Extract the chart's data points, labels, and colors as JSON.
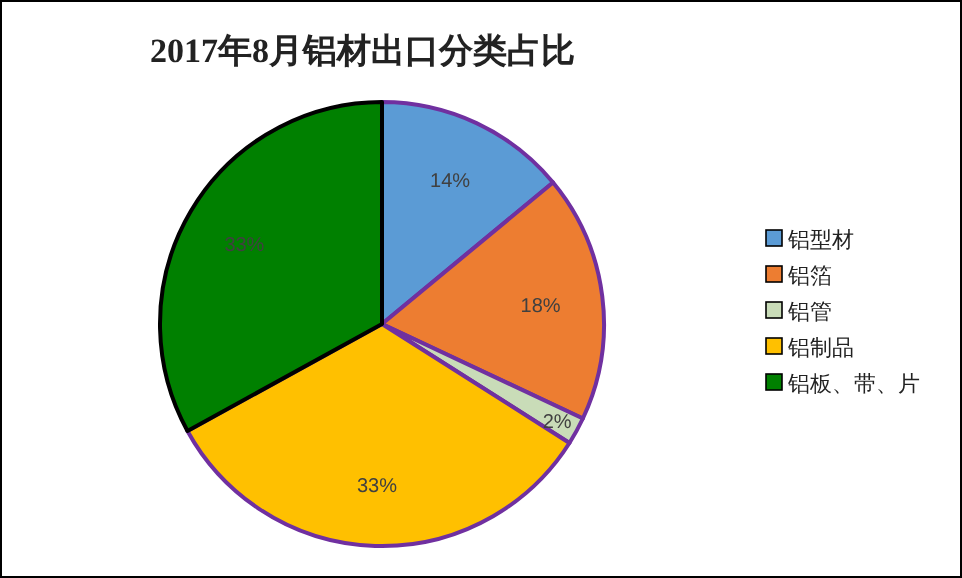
{
  "chart_data": {
    "type": "pie",
    "title": "2017年8月铝材出口分类占比",
    "categories": [
      "铝型材",
      "铝箔",
      "铝管",
      "铝制品",
      "铝板、带、片"
    ],
    "values": [
      14,
      18,
      2,
      33,
      33
    ],
    "colors": [
      "#5b9bd5",
      "#ed7d31",
      "#c9dcb8",
      "#ffc000",
      "#008000"
    ],
    "value_labels": [
      "14%",
      "18%",
      "2%",
      "33%",
      "33%"
    ],
    "legend": "right"
  }
}
